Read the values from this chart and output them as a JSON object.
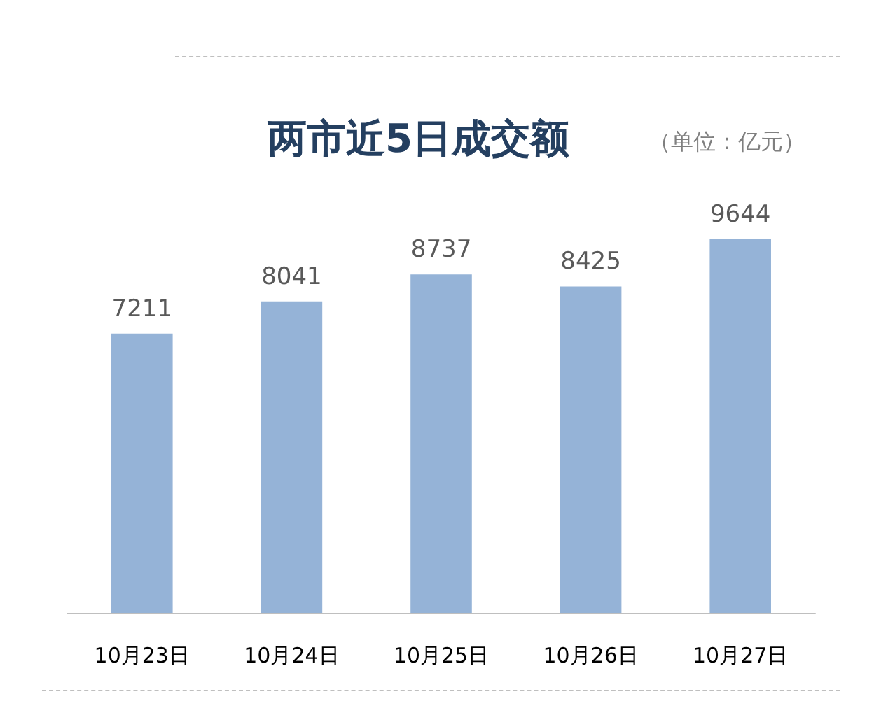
{
  "chart_data": {
    "type": "bar",
    "title": "两市近5日成交额",
    "annotations": [
      "（单位：亿元）"
    ],
    "categories": [
      "10月23日",
      "10月24日",
      "10月25日",
      "10月26日",
      "10月27日"
    ],
    "values": [
      7211,
      8041,
      8737,
      8425,
      9644
    ],
    "color": "#95b3d7",
    "data_labels": true,
    "grid": false,
    "tick_labels": "x"
  }
}
